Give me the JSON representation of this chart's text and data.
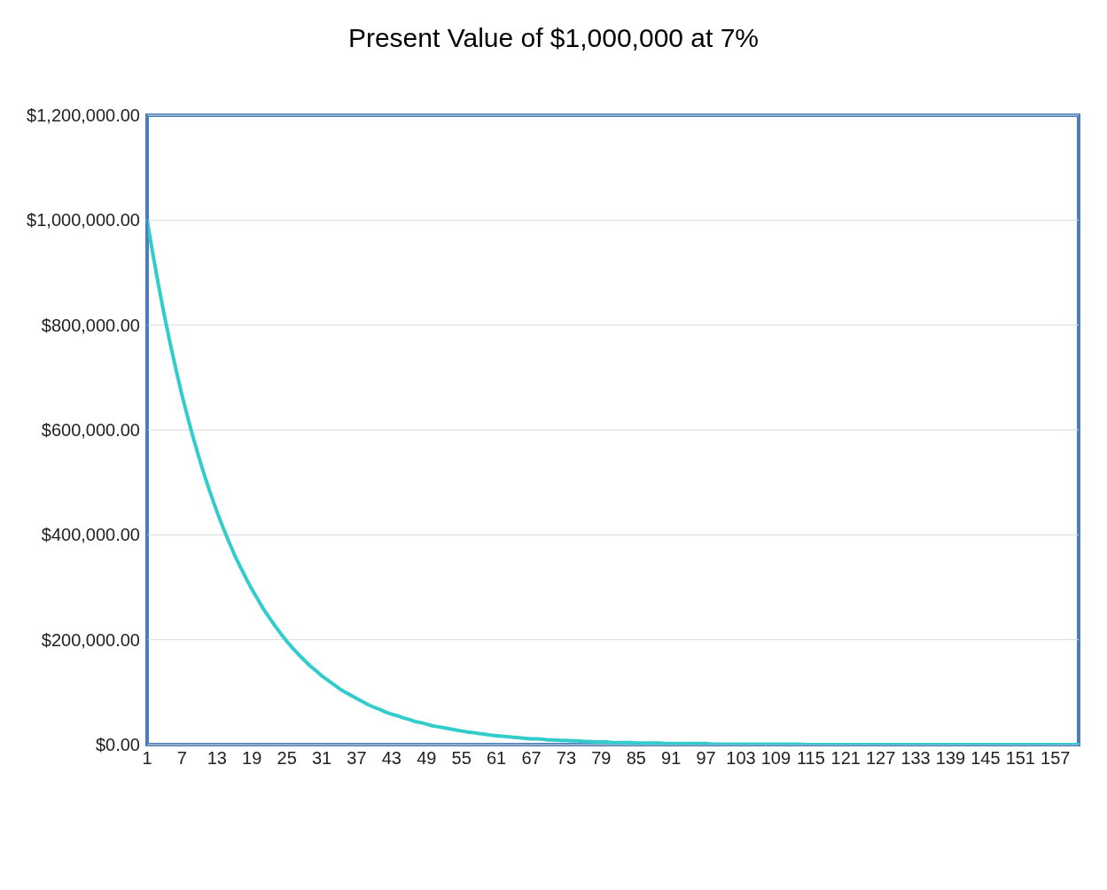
{
  "chart_data": {
    "type": "line",
    "title": "Present Value of $1,000,000 at 7%",
    "categories": [
      "1",
      null,
      null,
      null,
      null,
      null,
      "7",
      null,
      null,
      null,
      null,
      null,
      "13",
      null,
      null,
      null,
      null,
      null,
      "19",
      null,
      null,
      null,
      null,
      null,
      "25",
      null,
      null,
      null,
      null,
      null,
      "31",
      null,
      null,
      null,
      null,
      null,
      "37",
      null,
      null,
      null,
      null,
      null,
      "43",
      null,
      null,
      null,
      null,
      null,
      "49",
      null,
      null,
      null,
      null,
      null,
      "55",
      null,
      null,
      null,
      null,
      null,
      "61",
      null,
      null,
      null,
      null,
      null,
      "67",
      null,
      null,
      null,
      null,
      null,
      "73",
      null,
      null,
      null,
      null,
      null,
      "79",
      null,
      null,
      null,
      null,
      null,
      "85",
      null,
      null,
      null,
      null,
      null,
      "91",
      null,
      null,
      null,
      null,
      null,
      "97",
      null,
      null,
      null,
      null,
      null,
      "103",
      null,
      null,
      null,
      null,
      null,
      "109",
      null,
      null,
      null,
      null,
      null,
      "115",
      null,
      null,
      null,
      null,
      null,
      "121",
      null,
      null,
      null,
      null,
      null,
      "127",
      null,
      null,
      null,
      null,
      null,
      "133",
      null,
      null,
      null,
      null,
      null,
      "139",
      null,
      null,
      null,
      null,
      null,
      "145",
      null,
      null,
      null,
      null,
      null,
      "151",
      null,
      null,
      null,
      null,
      null,
      "157",
      null,
      null,
      null,
      null
    ],
    "series": [
      {
        "color": "#33cccc",
        "values": [
          1000000,
          935000,
          873000,
          816000,
          763000,
          713000,
          666000,
          623000,
          582000,
          544000,
          508000,
          475000,
          444000,
          415000,
          388000,
          362000,
          339000,
          317000,
          296000,
          277000,
          258000,
          242000,
          226000,
          211000,
          197000,
          184000,
          172000,
          161000,
          150000,
          141000,
          131000,
          123000,
          115000,
          107000,
          100000,
          94000,
          88000,
          82000,
          76000,
          71000,
          67000,
          62000,
          58000,
          55000,
          51000,
          48000,
          44000,
          42000,
          39000,
          36000,
          34000,
          32000,
          30000,
          28000,
          26000,
          24000,
          23000,
          21000,
          20000,
          18000,
          17000,
          16000,
          15000,
          14000,
          13000,
          12000,
          11000,
          11000,
          10000,
          9000,
          9000,
          8000,
          8000,
          7000,
          7000,
          6000,
          6000,
          5000,
          5000,
          5000,
          4000,
          4000,
          4000,
          4000,
          3000,
          3000,
          3000,
          3000,
          3000,
          2000,
          2000,
          2000,
          2000,
          2000,
          2000,
          2000,
          2000,
          1000,
          1000,
          1000,
          1000,
          1000,
          1000,
          1000,
          1000,
          1000,
          1000,
          1000,
          1000,
          1000,
          1000,
          1000,
          1000,
          0,
          0,
          0,
          0,
          0,
          0,
          0,
          0,
          0,
          0,
          0,
          0,
          0,
          0,
          0,
          0,
          0,
          0,
          0,
          0,
          0,
          0,
          0,
          0,
          0,
          0,
          0,
          0,
          0,
          0,
          0,
          0,
          0,
          0,
          0,
          0,
          0,
          0,
          0,
          0,
          0,
          0,
          0,
          0,
          0,
          0,
          0,
          0
        ]
      }
    ],
    "ylim": [
      0,
      1200000
    ],
    "yticks": [
      {
        "value": 0,
        "label": "$0.00"
      },
      {
        "value": 200000,
        "label": "$200,000.00"
      },
      {
        "value": 400000,
        "label": "$400,000.00"
      },
      {
        "value": 600000,
        "label": "$600,000.00"
      },
      {
        "value": 800000,
        "label": "$800,000.00"
      },
      {
        "value": 1000000,
        "label": "$1,000,000.00"
      },
      {
        "value": 1200000,
        "label": "$1,200,000.00"
      }
    ],
    "grid": "y",
    "marker": "none",
    "line_style": "solid"
  }
}
